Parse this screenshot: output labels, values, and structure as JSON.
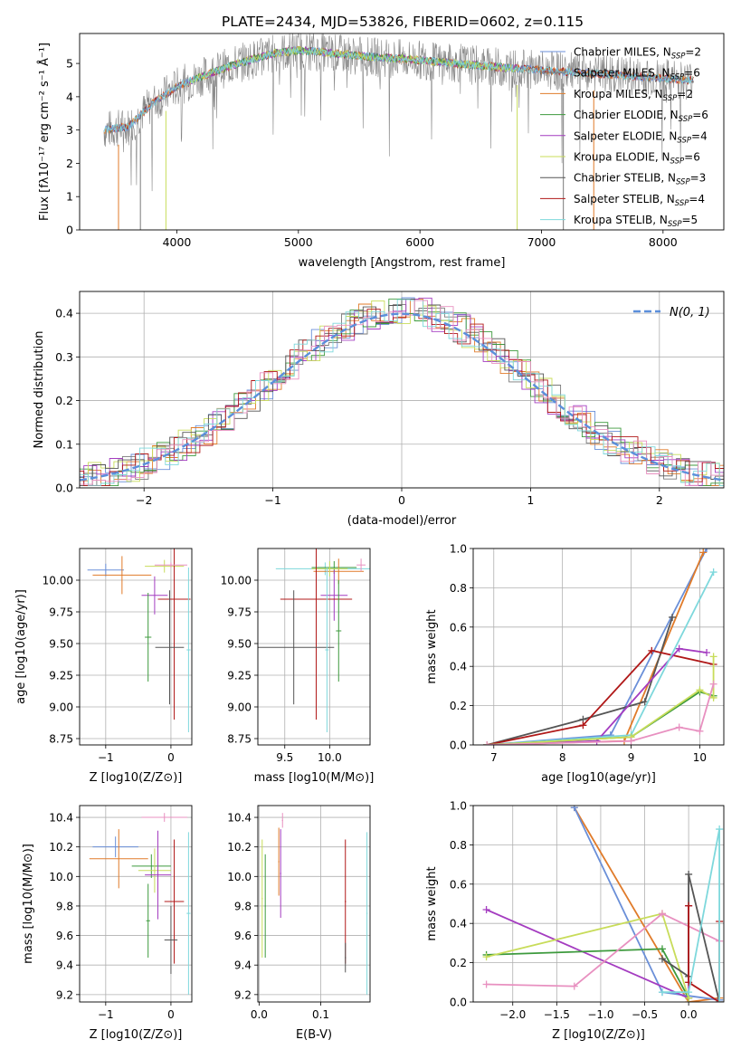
{
  "figure_title": "PLATE=2434, MJD=53826, FIBERID=0602, z=0.115",
  "colors": {
    "chabrier_miles": "#6a8fd8",
    "salpeter_miles": "#7a7a7a",
    "kroupa_miles": "#e07b2a",
    "chabrier_elodie": "#3d9a3d",
    "salpeter_elodie": "#a43cc0",
    "kroupa_elodie": "#c8dc5a",
    "chabrier_stelib": "#555555",
    "salpeter_stelib": "#b01818",
    "kroupa_stelib": "#7ed8dc",
    "pink": "#e890c0",
    "normal": "#5b8fdb",
    "grid": "#b0b0b0"
  },
  "chart_data": [
    {
      "id": "spectrum",
      "type": "line",
      "xlabel": "wavelength [Angstrom, rest frame]",
      "ylabel": "Flux [fλ10⁻¹⁷ erg cm⁻² s⁻¹ Å⁻¹]",
      "xlim": [
        3200,
        8500
      ],
      "ylim": [
        0,
        5.9
      ],
      "xticks": [
        "4000",
        "5000",
        "6000",
        "7000",
        "8000"
      ],
      "yticks": [
        "0",
        "1",
        "2",
        "3",
        "4",
        "5"
      ],
      "grid": false,
      "legend_position": "top-right",
      "legend": [
        "Chabrier MILES, NSSP=2",
        "Salpeter MILES, NSSP=6",
        "Kroupa MILES, NSSP=2",
        "Chabrier ELODIE, NSSP=6",
        "Salpeter ELODIE, NSSP=4",
        "Kroupa ELODIE, NSSP=6",
        "Chabrier STELIB, NSSP=3",
        "Salpeter STELIB, NSSP=4",
        "Kroupa STELIB, NSSP=5"
      ],
      "continuum": {
        "x": [
          3400,
          3600,
          3800,
          4000,
          4200,
          4500,
          4800,
          5000,
          5300,
          5600,
          6000,
          6300,
          6600,
          7000,
          7400,
          7800,
          8200
        ],
        "y": [
          3.0,
          3.1,
          3.8,
          4.3,
          4.6,
          5.0,
          5.3,
          5.4,
          5.3,
          5.2,
          5.1,
          5.0,
          4.9,
          4.8,
          4.7,
          4.6,
          4.5
        ]
      }
    },
    {
      "id": "residuals",
      "type": "line",
      "xlabel": "(data-model)/error",
      "ylabel": "Normed distribution",
      "xlim": [
        -2.5,
        2.5
      ],
      "ylim": [
        0,
        0.45
      ],
      "xticks": [
        "−2",
        "−1",
        "0",
        "1",
        "2"
      ],
      "yticks": [
        "0.0",
        "0.1",
        "0.2",
        "0.3",
        "0.4"
      ],
      "grid": true,
      "legend_position": "top-right",
      "legend": [
        "N(0, 1)"
      ],
      "series_note": "step histograms of nine fits plus the standard normal curve"
    },
    {
      "id": "age_vs_Z",
      "type": "scatter",
      "xlabel": "Z [log10(Z/Z⊙)]",
      "ylabel": "age  [log10(age/yr)]",
      "xlim": [
        -1.4,
        0.32
      ],
      "ylim": [
        8.7,
        10.25
      ],
      "xticks": [
        "−1",
        "0"
      ],
      "yticks": [
        "8.75",
        "9.00",
        "9.25",
        "9.50",
        "9.75",
        "10.00"
      ],
      "points": [
        {
          "x": -1.0,
          "y": 10.08,
          "xerr": 0.28,
          "yerr": 0.05,
          "color": "chabrier_miles"
        },
        {
          "x": -0.75,
          "y": 10.04,
          "xerr": 0.45,
          "yerr": 0.15,
          "color": "kroupa_miles"
        },
        {
          "x": -0.1,
          "y": 10.11,
          "xerr": 0.3,
          "yerr": 0.05,
          "color": "kroupa_elodie"
        },
        {
          "x": -0.25,
          "y": 9.88,
          "xerr": 0.2,
          "yerr": 0.15,
          "color": "salpeter_elodie"
        },
        {
          "x": -0.35,
          "y": 9.55,
          "xerr": 0.05,
          "yerr": 0.35,
          "color": "chabrier_elodie"
        },
        {
          "x": 0.05,
          "y": 9.85,
          "xerr": 0.25,
          "yerr": 0.95,
          "color": "salpeter_stelib"
        },
        {
          "x": -0.02,
          "y": 9.47,
          "xerr": 0.22,
          "yerr": 0.45,
          "color": "chabrier_stelib"
        },
        {
          "x": 0.27,
          "y": 9.45,
          "xerr": 0.03,
          "yerr": 0.65,
          "color": "kroupa_stelib"
        },
        {
          "x": 0.0,
          "y": 10.12,
          "xerr": 0.25,
          "yerr": 0.02,
          "color": "pink"
        }
      ]
    },
    {
      "id": "age_vs_mass",
      "type": "scatter",
      "xlabel": "mass [log10(M/M⊙)]",
      "ylabel": "",
      "xlim": [
        9.2,
        10.45
      ],
      "ylim": [
        8.7,
        10.25
      ],
      "xticks": [
        "9.5",
        "10.0"
      ],
      "yticks": [
        "8.75",
        "9.00",
        "9.25",
        "9.50",
        "9.75",
        "10.00"
      ],
      "points": [
        {
          "x": 9.95,
          "y": 10.09,
          "xerr": 0.55,
          "yerr": 0.05,
          "color": "kroupa_stelib"
        },
        {
          "x": 10.05,
          "y": 10.1,
          "xerr": 0.25,
          "yerr": 0.05,
          "color": "chabrier_elodie"
        },
        {
          "x": 10.1,
          "y": 10.07,
          "xerr": 0.28,
          "yerr": 0.1,
          "color": "kroupa_miles"
        },
        {
          "x": 10.0,
          "y": 10.09,
          "xerr": 0.2,
          "yerr": 0.06,
          "color": "kroupa_elodie"
        },
        {
          "x": 10.05,
          "y": 9.88,
          "xerr": 0.15,
          "yerr": 0.2,
          "color": "salpeter_elodie"
        },
        {
          "x": 9.85,
          "y": 9.85,
          "xerr": 0.4,
          "yerr": 0.95,
          "color": "salpeter_stelib"
        },
        {
          "x": 9.6,
          "y": 9.47,
          "xerr": 0.45,
          "yerr": 0.45,
          "color": "chabrier_stelib"
        },
        {
          "x": 10.1,
          "y": 9.6,
          "xerr": 0.03,
          "yerr": 0.4,
          "color": "chabrier_elodie"
        },
        {
          "x": 10.35,
          "y": 10.12,
          "xerr": 0.05,
          "yerr": 0.05,
          "color": "pink"
        },
        {
          "x": 9.97,
          "y": 9.45,
          "xerr": 0.02,
          "yerr": 0.65,
          "color": "kroupa_stelib"
        }
      ]
    },
    {
      "id": "mass_weight_vs_age",
      "type": "line",
      "xlabel": "age  [log10(age/yr)]",
      "ylabel": "mass weight",
      "xlim": [
        6.7,
        10.35
      ],
      "ylim": [
        0,
        1
      ],
      "xticks": [
        "7",
        "8",
        "9",
        "10"
      ],
      "yticks": [
        "0.0",
        "0.2",
        "0.4",
        "0.6",
        "0.8",
        "1.0"
      ],
      "grid": true,
      "series": [
        {
          "color": "chabrier_miles",
          "x": [
            6.9,
            8.7,
            10.1
          ],
          "y": [
            0.0,
            0.05,
            1.0
          ]
        },
        {
          "color": "kroupa_miles",
          "x": [
            6.9,
            8.9,
            10.05
          ],
          "y": [
            0.0,
            0.02,
            0.98
          ]
        },
        {
          "color": "chabrier_stelib",
          "x": [
            6.9,
            8.3,
            9.2,
            9.6
          ],
          "y": [
            0.0,
            0.13,
            0.22,
            0.65
          ]
        },
        {
          "color": "salpeter_stelib",
          "x": [
            6.9,
            8.3,
            9.3,
            10.2
          ],
          "y": [
            0.0,
            0.1,
            0.48,
            0.41
          ]
        },
        {
          "color": "salpeter_elodie",
          "x": [
            6.9,
            8.5,
            9.7,
            10.1
          ],
          "y": [
            0.0,
            0.02,
            0.49,
            0.47
          ]
        },
        {
          "color": "kroupa_stelib",
          "x": [
            6.9,
            9.0,
            10.2
          ],
          "y": [
            0.0,
            0.05,
            0.88
          ]
        },
        {
          "color": "chabrier_elodie",
          "x": [
            6.9,
            9.0,
            10.0,
            10.2
          ],
          "y": [
            0.0,
            0.04,
            0.27,
            0.25
          ]
        },
        {
          "color": "kroupa_elodie",
          "x": [
            6.9,
            9.0,
            10.0,
            10.2,
            10.2
          ],
          "y": [
            0.0,
            0.04,
            0.28,
            0.24,
            0.45
          ]
        },
        {
          "color": "pink",
          "x": [
            6.9,
            9.0,
            9.7,
            10.0,
            10.2
          ],
          "y": [
            0.0,
            0.02,
            0.09,
            0.07,
            0.31
          ]
        }
      ]
    },
    {
      "id": "mass_vs_Z",
      "type": "scatter",
      "xlabel": "Z [log10(Z/Z⊙)]",
      "ylabel": "mass [log10(M/M⊙)]",
      "xlim": [
        -1.4,
        0.32
      ],
      "ylim": [
        9.15,
        10.48
      ],
      "xticks": [
        "−1",
        "0"
      ],
      "yticks": [
        "9.2",
        "9.4",
        "9.6",
        "9.8",
        "10.0",
        "10.2",
        "10.4"
      ],
      "points": [
        {
          "x": -0.1,
          "y": 10.4,
          "xerr": 0.35,
          "yerr": 0.03,
          "color": "pink"
        },
        {
          "x": -0.85,
          "y": 10.2,
          "xerr": 0.35,
          "yerr": 0.07,
          "color": "chabrier_miles"
        },
        {
          "x": -0.8,
          "y": 10.12,
          "xerr": 0.45,
          "yerr": 0.2,
          "color": "kroupa_miles"
        },
        {
          "x": -0.3,
          "y": 10.07,
          "xerr": 0.3,
          "yerr": 0.08,
          "color": "chabrier_elodie"
        },
        {
          "x": -0.25,
          "y": 10.04,
          "xerr": 0.25,
          "yerr": 0.15,
          "color": "kroupa_elodie"
        },
        {
          "x": -0.2,
          "y": 10.01,
          "xerr": 0.2,
          "yerr": 0.3,
          "color": "salpeter_elodie"
        },
        {
          "x": 0.05,
          "y": 9.83,
          "xerr": 0.15,
          "yerr": 0.42,
          "color": "salpeter_stelib"
        },
        {
          "x": 0.0,
          "y": 9.57,
          "xerr": 0.1,
          "yerr": 0.23,
          "color": "chabrier_stelib"
        },
        {
          "x": -0.35,
          "y": 9.7,
          "xerr": 0.03,
          "yerr": 0.25,
          "color": "chabrier_elodie"
        },
        {
          "x": 0.27,
          "y": 9.75,
          "xerr": 0.03,
          "yerr": 0.55,
          "color": "kroupa_stelib"
        }
      ]
    },
    {
      "id": "mass_vs_ebv",
      "type": "scatter",
      "xlabel": "E(B-V)",
      "ylabel": "",
      "xlim": [
        -0.002,
        0.18
      ],
      "ylim": [
        9.15,
        10.48
      ],
      "xticks": [
        "0.0",
        "0.1"
      ],
      "yticks": [
        "9.2",
        "9.4",
        "9.6",
        "9.8",
        "10.0",
        "10.2",
        "10.4"
      ],
      "points": [
        {
          "x": 0.038,
          "y": 10.38,
          "xerr": 0.001,
          "yerr": 0.05,
          "color": "pink"
        },
        {
          "x": 0.032,
          "y": 10.1,
          "xerr": 0.001,
          "yerr": 0.23,
          "color": "kroupa_miles"
        },
        {
          "x": 0.035,
          "y": 10.02,
          "xerr": 0.001,
          "yerr": 0.3,
          "color": "salpeter_elodie"
        },
        {
          "x": 0.005,
          "y": 9.85,
          "xerr": 0.001,
          "yerr": 0.4,
          "color": "kroupa_elodie"
        },
        {
          "x": 0.01,
          "y": 9.8,
          "xerr": 0.001,
          "yerr": 0.35,
          "color": "chabrier_elodie"
        },
        {
          "x": 0.14,
          "y": 9.83,
          "xerr": 0.001,
          "yerr": 0.42,
          "color": "salpeter_stelib"
        },
        {
          "x": 0.14,
          "y": 9.45,
          "xerr": 0.001,
          "yerr": 0.1,
          "color": "chabrier_stelib"
        },
        {
          "x": 0.175,
          "y": 9.75,
          "xerr": 0.001,
          "yerr": 0.55,
          "color": "kroupa_stelib"
        }
      ]
    },
    {
      "id": "mass_weight_vs_Z",
      "type": "line",
      "xlabel": "Z [log10(Z/Z⊙)]",
      "ylabel": "mass weight",
      "xlim": [
        -2.45,
        0.4
      ],
      "ylim": [
        0,
        1
      ],
      "xticks": [
        "−2.0",
        "−1.5",
        "−1.0",
        "−0.5",
        "0.0"
      ],
      "yticks": [
        "0.0",
        "0.2",
        "0.4",
        "0.6",
        "0.8",
        "1.0"
      ],
      "grid": true,
      "series": [
        {
          "color": "kroupa_miles",
          "x": [
            -1.3,
            0.0,
            0.35
          ],
          "y": [
            0.99,
            0.0,
            0.02
          ]
        },
        {
          "color": "chabrier_miles",
          "x": [
            -1.3,
            -0.3,
            0.35
          ],
          "y": [
            0.99,
            0.05,
            0.01
          ]
        },
        {
          "color": "salpeter_elodie",
          "x": [
            -2.3,
            0.0,
            0.0
          ],
          "y": [
            0.47,
            0.02,
            0.49
          ]
        },
        {
          "color": "chabrier_elodie",
          "x": [
            -2.3,
            -0.3,
            0.0
          ],
          "y": [
            0.24,
            0.27,
            0.02
          ]
        },
        {
          "color": "kroupa_elodie",
          "x": [
            -2.3,
            -0.3,
            0.0
          ],
          "y": [
            0.23,
            0.45,
            0.02
          ]
        },
        {
          "color": "pink",
          "x": [
            -2.3,
            -1.3,
            -0.3,
            0.35
          ],
          "y": [
            0.09,
            0.08,
            0.45,
            0.31
          ]
        },
        {
          "color": "chabrier_stelib",
          "x": [
            -0.3,
            0.0,
            0.0,
            0.35
          ],
          "y": [
            0.22,
            0.13,
            0.65,
            0.0
          ]
        },
        {
          "color": "salpeter_stelib",
          "x": [
            0.0,
            0.0,
            0.35,
            0.35
          ],
          "y": [
            0.49,
            0.1,
            0.0,
            0.41
          ]
        },
        {
          "color": "kroupa_stelib",
          "x": [
            -0.3,
            0.0,
            0.35,
            0.35
          ],
          "y": [
            0.05,
            0.05,
            0.88,
            0.0
          ]
        }
      ]
    }
  ]
}
